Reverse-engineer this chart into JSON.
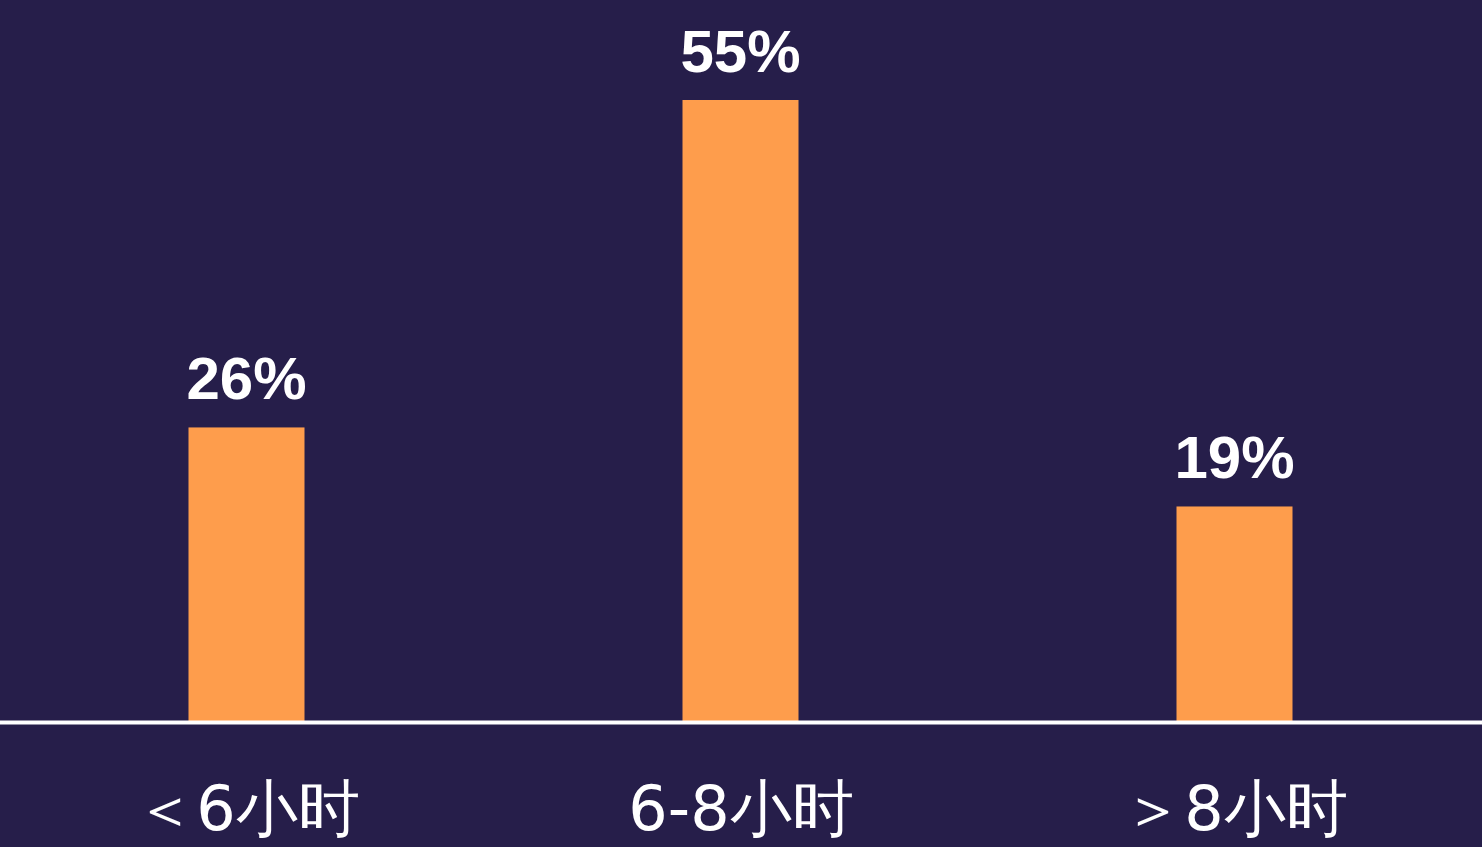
{
  "chart_data": {
    "type": "bar",
    "categories": [
      "＜6小时",
      "6-8小时",
      "＞8小时"
    ],
    "values": [
      26,
      55,
      19
    ],
    "color": "#fe9d4c",
    "value_labels": [
      "26%",
      "55%",
      "19%"
    ]
  }
}
